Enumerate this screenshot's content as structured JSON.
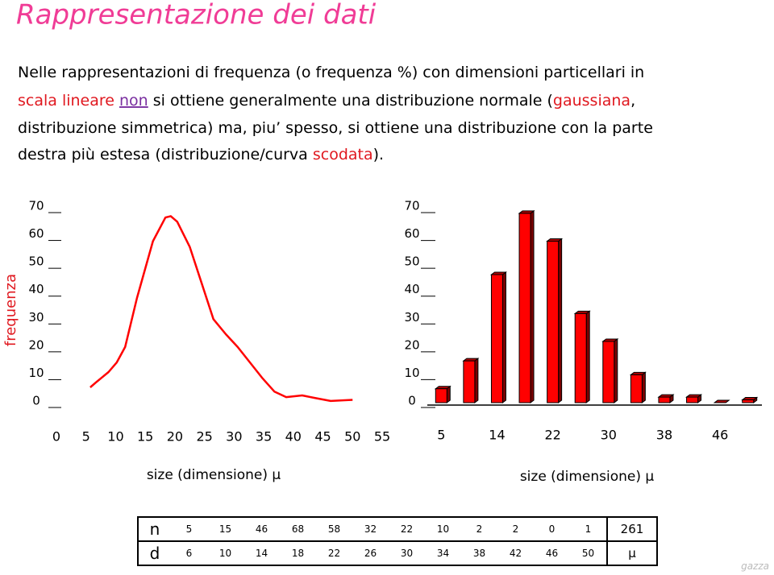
{
  "title": "Rappresentazione dei dati",
  "paragraph": [
    {
      "text": "Nelle rappresentazioni di frequenza (o frequenza %) con dimensioni particellari in",
      "color": "#000000"
    },
    {
      "text": "scala lineare ",
      "color": "#e0181f"
    },
    {
      "text": "non",
      "color": "#7a2fa0"
    },
    {
      "text": " si ottiene generalmente una distribuzione normale (",
      "color": "#000000"
    },
    {
      "text": "gaussiana",
      "color": "#e0181f"
    },
    {
      "text": ",",
      "color": "#000000"
    },
    {
      "text": "distribuzione simmetrica) ma, piu’ spesso, si ottiene una distribuzione con la parte",
      "color": "#000000"
    },
    {
      "text": "destra più estesa (distribuzione/curva ",
      "color": "#000000"
    },
    {
      "text": "scodata",
      "color": "#e0181f"
    },
    {
      "text": ").",
      "color": "#000000"
    }
  ],
  "chart_data": [
    {
      "type": "line",
      "ylabel": "frequenza",
      "xlabel": "size (dimensione) μ",
      "color": "#ff0000",
      "x": [
        5.7,
        6.8,
        8.8,
        10.2,
        11.6,
        13.6,
        16.3,
        18.4,
        19.3,
        20.4,
        22.5,
        24.5,
        26.5,
        28.6,
        30.6,
        34.7,
        36.8,
        38.8,
        41.5,
        43.6,
        46.3,
        50
      ],
      "values": [
        5.5,
        7.5,
        11,
        14.5,
        20,
        37.6,
        58,
        66.5,
        67,
        65,
        56,
        43,
        30,
        24.6,
        20,
        9,
        4,
        2,
        2.6,
        1.7,
        0.6,
        1
      ],
      "xlim": [
        0,
        55
      ],
      "xticks": [
        0,
        5,
        10,
        15,
        20,
        25,
        30,
        35,
        40,
        45,
        50,
        55
      ],
      "ylim": [
        0,
        70
      ],
      "yticks": [
        0,
        10,
        20,
        30,
        40,
        50,
        60,
        70
      ]
    },
    {
      "type": "bar",
      "xlabel": "size (dimensione) μ",
      "color": "#ff0000",
      "categories": [
        "5",
        null,
        "14",
        null,
        "22",
        null,
        "30",
        null,
        "38",
        null,
        "46",
        null
      ],
      "values": [
        5,
        15,
        46,
        68,
        58,
        32,
        22,
        10,
        2,
        2,
        0,
        1
      ],
      "ylim": [
        0,
        70
      ],
      "yticks": [
        0,
        10,
        20,
        30,
        40,
        50,
        60,
        70
      ]
    }
  ],
  "table": {
    "rows": [
      [
        "n",
        "5",
        "15",
        "46",
        "68",
        "58",
        "32",
        "22",
        "10",
        "2",
        "2",
        "0",
        "1",
        "261"
      ],
      [
        "d",
        "6",
        "10",
        "14",
        "18",
        "22",
        "26",
        "30",
        "34",
        "38",
        "42",
        "46",
        "50",
        "μ"
      ]
    ]
  },
  "watermark": "gazza"
}
